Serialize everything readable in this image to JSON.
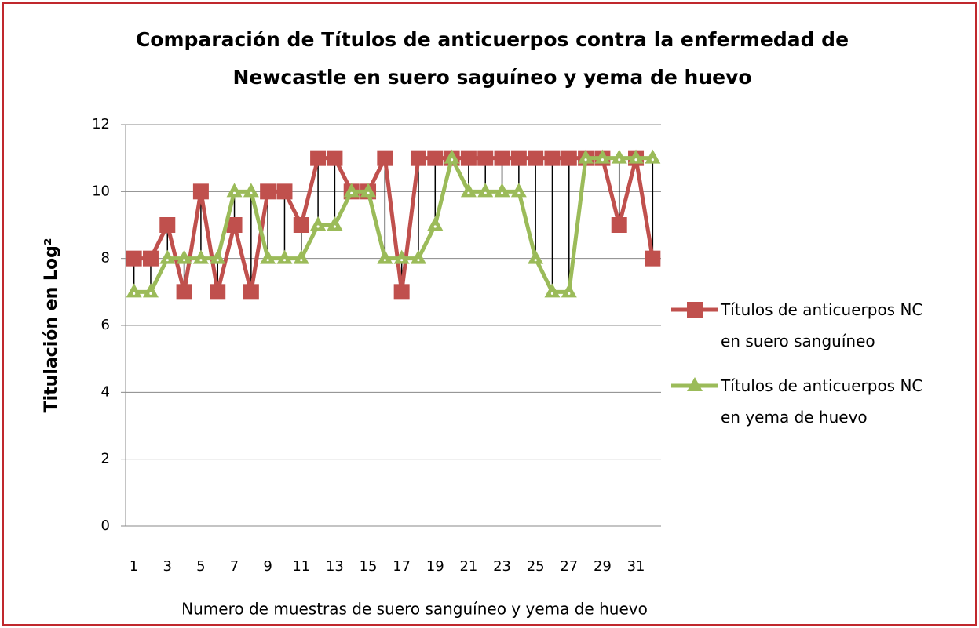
{
  "chart_data": {
    "type": "line",
    "title": [
      "Comparación de Títulos de anticuerpos contra la enfermedad de",
      "Newcastle en suero saguíneo y yema de huevo"
    ],
    "xlabel": "Numero de muestras de suero sanguíneo y yema de huevo",
    "ylabel": "Titulación en Log²",
    "categories": [
      "1",
      null,
      "3",
      null,
      "5",
      null,
      "7",
      null,
      "9",
      null,
      "11",
      null,
      "13",
      null,
      "15",
      null,
      "17",
      null,
      "19",
      null,
      "21",
      null,
      "23",
      null,
      "25",
      null,
      "27",
      null,
      "29",
      null,
      "31",
      null
    ],
    "series": [
      {
        "name": "Títulos de anticuerpos NC en suero sanguíneo",
        "color": "#c0504d",
        "marker": "square",
        "values": [
          8,
          8,
          9,
          7,
          10,
          7,
          9,
          7,
          10,
          10,
          9,
          11,
          11,
          10,
          10,
          11,
          7,
          11,
          11,
          11,
          11,
          11,
          11,
          11,
          11,
          11,
          11,
          11,
          11,
          9,
          11,
          8
        ]
      },
      {
        "name": "Títulos de anticuerpos NC en yema de huevo",
        "color": "#9bbb59",
        "marker": "triangle",
        "values": [
          7,
          7,
          8,
          8,
          8,
          8,
          10,
          10,
          8,
          8,
          8,
          9,
          9,
          10,
          10,
          8,
          8,
          8,
          9,
          11,
          10,
          10,
          10,
          10,
          8,
          7,
          7,
          11,
          11,
          11,
          11,
          11
        ]
      }
    ],
    "ylim": [
      0,
      12
    ],
    "yticks": [
      0,
      2,
      4,
      6,
      8,
      10,
      12
    ],
    "grid": true,
    "high_low_lines": true,
    "legend": "right"
  }
}
